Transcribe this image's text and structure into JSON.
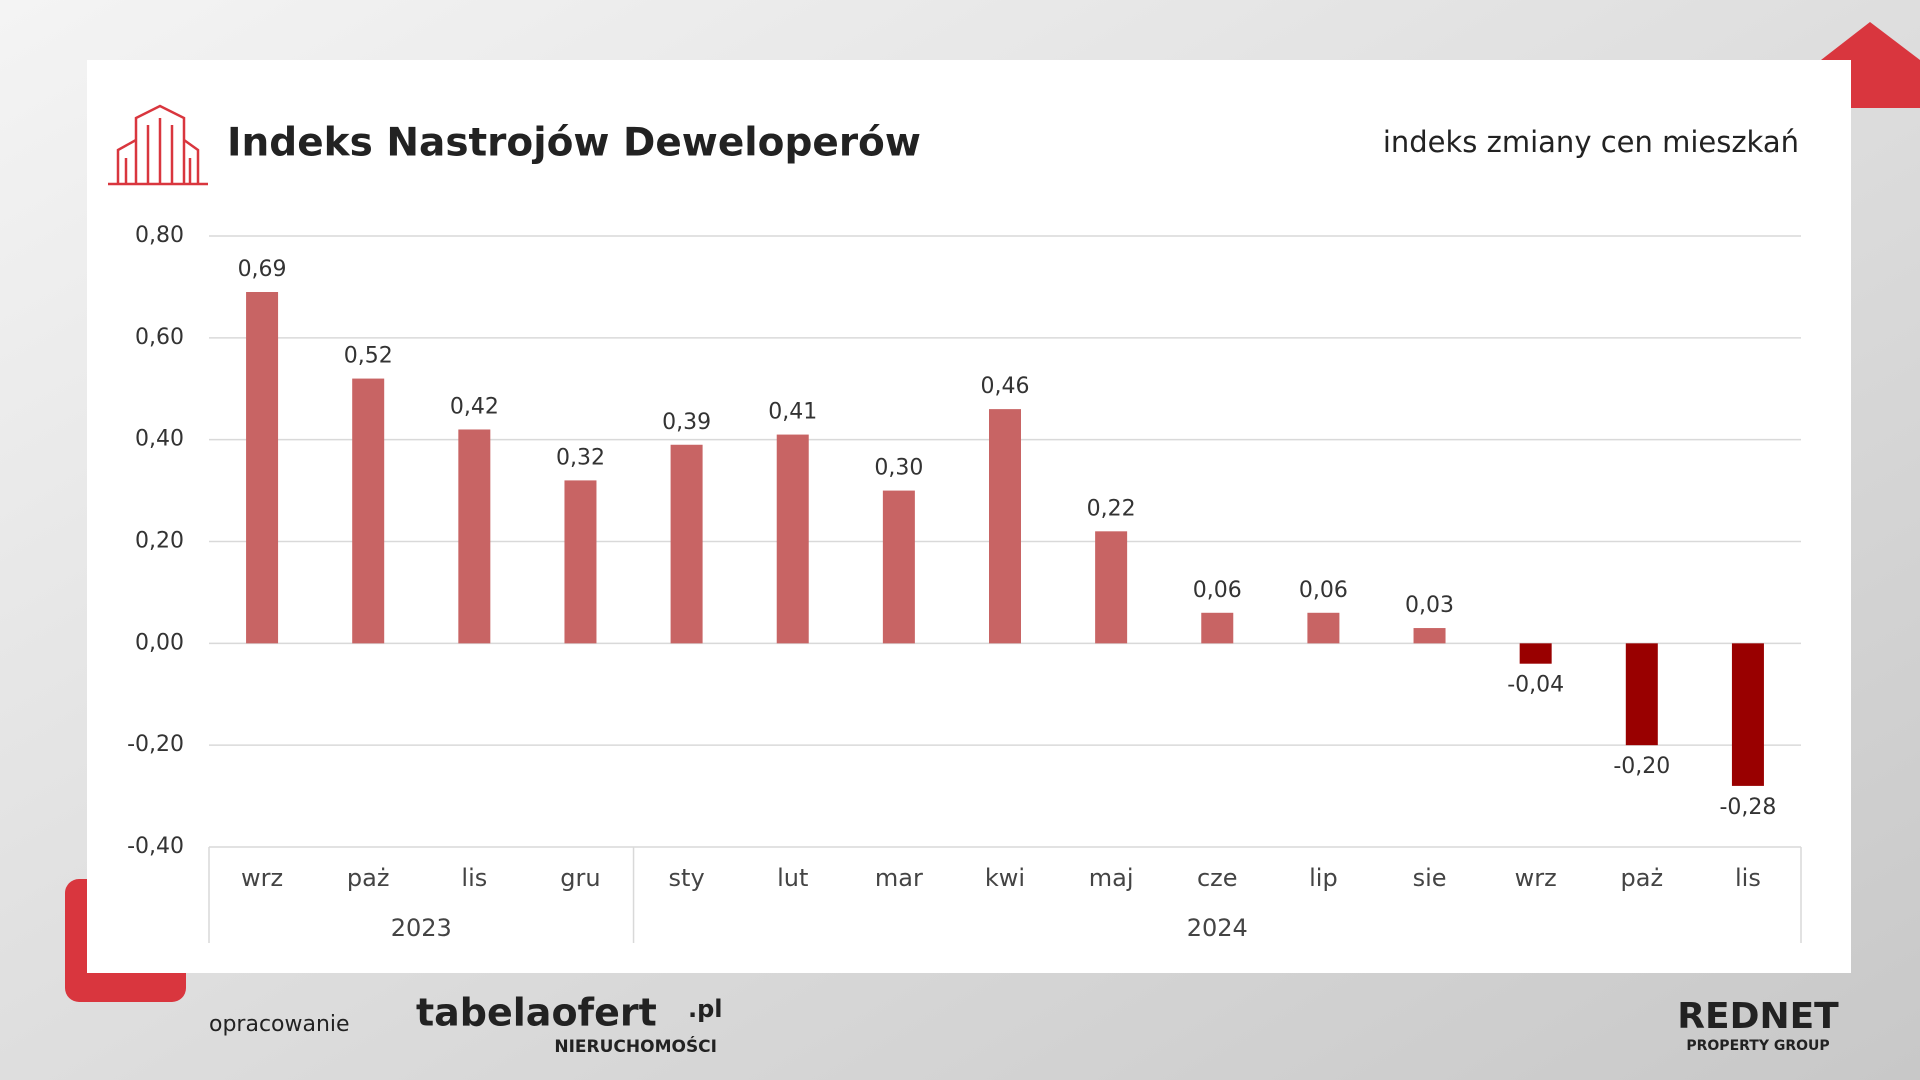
{
  "header": {
    "title": "Indeks Nastrojów Deweloperów",
    "subtitle": "indeks zmiany cen mieszkań"
  },
  "chart_data": {
    "type": "bar",
    "categories": [
      "wrz",
      "paż",
      "lis",
      "gru",
      "sty",
      "lut",
      "mar",
      "kwi",
      "maj",
      "cze",
      "lip",
      "sie",
      "wrz",
      "paż",
      "lis"
    ],
    "groups": [
      {
        "label": "2023",
        "count": 4
      },
      {
        "label": "2024",
        "count": 11
      }
    ],
    "values": [
      0.69,
      0.52,
      0.42,
      0.32,
      0.39,
      0.41,
      0.3,
      0.46,
      0.22,
      0.06,
      0.06,
      0.03,
      -0.04,
      -0.2,
      -0.28
    ],
    "value_labels": [
      "0,69",
      "0,52",
      "0,42",
      "0,32",
      "0,39",
      "0,41",
      "0,30",
      "0,46",
      "0,22",
      "0,06",
      "0,06",
      "0,03",
      "-0,04",
      "-0,20",
      "-0,28"
    ],
    "color": "#c86464",
    "negative_color": "#990000",
    "ylim": [
      -0.4,
      0.8
    ],
    "yticks": [
      {
        "value": -0.4,
        "label": "-0,40"
      },
      {
        "value": -0.2,
        "label": "-0,20"
      },
      {
        "value": 0,
        "label": "0,00"
      },
      {
        "value": 0.2,
        "label": "0,20"
      },
      {
        "value": 0.4,
        "label": "0,40"
      },
      {
        "value": 0.6,
        "label": "0,60"
      },
      {
        "value": 0.8,
        "label": "0,80"
      }
    ],
    "grid": true
  },
  "footer": {
    "credit": "opracowanie",
    "brand": "tabelaofert",
    "brand_domain": ".pl",
    "brand_tagline": "NIERUCHOMOŚCI",
    "partner": "REDNET",
    "partner_tagline": "PROPERTY GROUP"
  }
}
